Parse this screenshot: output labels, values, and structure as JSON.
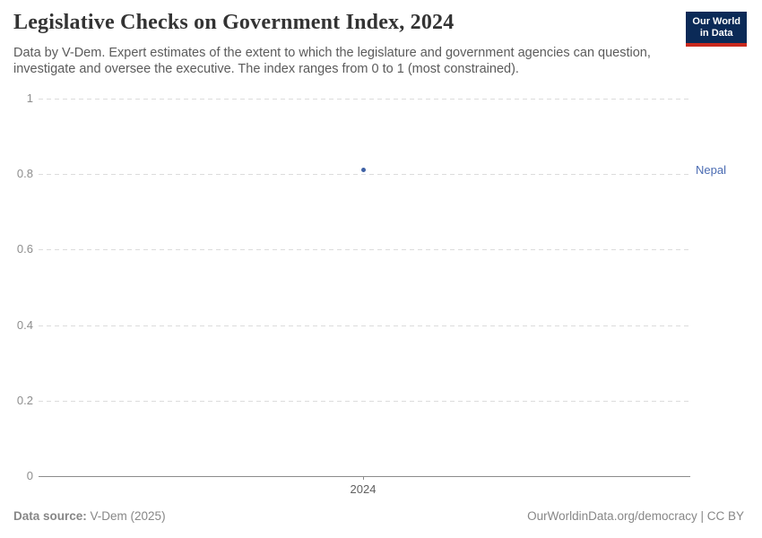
{
  "header": {
    "title": "Legislative Checks on Government Index, 2024",
    "subtitle": "Data by V-Dem. Expert estimates of the extent to which the legislature and government agencies can question, investigate and oversee the executive. The index ranges from 0 to 1 (most constrained).",
    "logo": {
      "line1": "Our World",
      "line2": "in Data",
      "bg_color": "#0b2a57",
      "accent_color": "#c9291e"
    }
  },
  "chart_data": {
    "type": "scatter",
    "title": "Legislative Checks on Government Index, 2024",
    "x": [
      2024
    ],
    "series": [
      {
        "name": "Nepal",
        "values": [
          0.81
        ],
        "color": "#4a6bb2",
        "marker_color": "#3f62a6"
      }
    ],
    "xlabel": "",
    "ylabel": "",
    "ylim": [
      0,
      1
    ],
    "yticks": [
      0,
      0.2,
      0.4,
      0.6,
      0.8,
      1
    ],
    "xticks": [
      2024
    ],
    "grid": "horizontal dashed",
    "legend_position": "right-of-point",
    "gridline_color": "#dcdcdc",
    "axis_color": "#8c8c8c"
  },
  "footer": {
    "source_label": "Data source:",
    "source_value": " V-Dem (2025)",
    "credit": "OurWorldinData.org/democracy | CC BY"
  }
}
